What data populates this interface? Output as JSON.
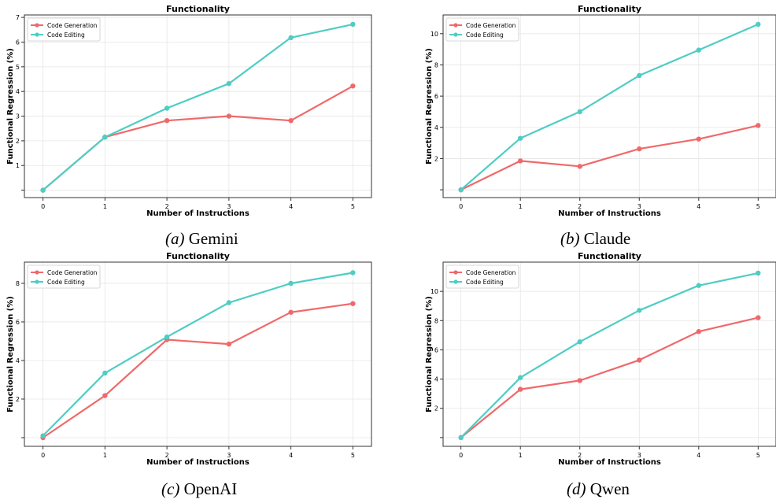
{
  "charts": [
    {
      "caption_tag": "(a)",
      "caption_name": "Gemini",
      "title": "Functionality",
      "xlabel": "Number of Instructions",
      "ylabel": "Functional Regression (%)",
      "x_ticks": [
        "0",
        "1",
        "2",
        "3",
        "4",
        "5"
      ],
      "y_ticks": [
        "",
        "1",
        "2",
        "3",
        "4",
        "5",
        "6",
        "7"
      ]
    },
    {
      "caption_tag": "(b)",
      "caption_name": "Claude",
      "title": "Functionality",
      "xlabel": "Number of Instructions",
      "ylabel": "Functional Regression (%)",
      "x_ticks": [
        "0",
        "1",
        "2",
        "3",
        "4",
        "5"
      ],
      "y_ticks": [
        "",
        "2",
        "4",
        "6",
        "8",
        "10"
      ]
    },
    {
      "caption_tag": "(c)",
      "caption_name": "OpenAI",
      "title": "Functionality",
      "xlabel": "Number of Instructions",
      "ylabel": "Functional Regression (%)",
      "x_ticks": [
        "0",
        "1",
        "2",
        "3",
        "4",
        "5"
      ],
      "y_ticks": [
        "",
        "2",
        "4",
        "6",
        "8"
      ]
    },
    {
      "caption_tag": "(d)",
      "caption_name": "Qwen",
      "title": "Functionality",
      "xlabel": "Number of Instructions",
      "ylabel": "Functional Regression (%)",
      "x_ticks": [
        "0",
        "1",
        "2",
        "3",
        "4",
        "5"
      ],
      "y_ticks": [
        "",
        "2",
        "4",
        "6",
        "8",
        "10"
      ]
    }
  ],
  "colors": {
    "code_generation": "#F0696A",
    "code_editing": "#4ECDC4",
    "grid": "#e6e6e6",
    "axis": "#333333"
  },
  "chart_data": [
    {
      "type": "line",
      "title": "Functionality",
      "xlabel": "Number of Instructions",
      "ylabel": "Functional Regression (%)",
      "x": [
        0,
        1,
        2,
        3,
        4,
        5
      ],
      "xlim": [
        -0.3,
        5.3
      ],
      "ylim": [
        -0.3,
        7.1
      ],
      "y_tick_values": [
        0,
        1,
        2,
        3,
        4,
        5,
        6,
        7
      ],
      "grid": true,
      "legend": "top-left",
      "series": [
        {
          "name": "Code Generation",
          "values": [
            0.0,
            2.15,
            2.82,
            3.0,
            2.82,
            4.22
          ]
        },
        {
          "name": "Code Editing",
          "values": [
            0.0,
            2.15,
            3.32,
            4.32,
            6.18,
            6.72
          ]
        }
      ]
    },
    {
      "type": "line",
      "title": "Functionality",
      "xlabel": "Number of Instructions",
      "ylabel": "Functional Regression (%)",
      "x": [
        0,
        1,
        2,
        3,
        4,
        5
      ],
      "xlim": [
        -0.3,
        5.3
      ],
      "ylim": [
        -0.5,
        11.2
      ],
      "y_tick_values": [
        0,
        2,
        4,
        6,
        8,
        10
      ],
      "grid": true,
      "legend": "top-left",
      "series": [
        {
          "name": "Code Generation",
          "values": [
            0.0,
            1.85,
            1.5,
            2.62,
            3.25,
            4.12
          ]
        },
        {
          "name": "Code Editing",
          "values": [
            0.0,
            3.3,
            5.0,
            7.32,
            8.95,
            10.6
          ]
        }
      ]
    },
    {
      "type": "line",
      "title": "Functionality",
      "xlabel": "Number of Instructions",
      "ylabel": "Functional Regression (%)",
      "x": [
        0,
        1,
        2,
        3,
        4,
        5
      ],
      "xlim": [
        -0.3,
        5.3
      ],
      "ylim": [
        -0.45,
        9.1
      ],
      "y_tick_values": [
        0,
        2,
        4,
        6,
        8
      ],
      "grid": true,
      "legend": "top-left",
      "series": [
        {
          "name": "Code Generation",
          "values": [
            0.0,
            2.18,
            5.08,
            4.85,
            6.5,
            6.95
          ]
        },
        {
          "name": "Code Editing",
          "values": [
            0.1,
            3.35,
            5.22,
            7.0,
            8.0,
            8.55
          ]
        }
      ]
    },
    {
      "type": "line",
      "title": "Functionality",
      "xlabel": "Number of Instructions",
      "ylabel": "Functional Regression (%)",
      "x": [
        0,
        1,
        2,
        3,
        4,
        5
      ],
      "xlim": [
        -0.3,
        5.3
      ],
      "ylim": [
        -0.6,
        12.0
      ],
      "y_tick_values": [
        0,
        2,
        4,
        6,
        8,
        10
      ],
      "grid": true,
      "legend": "top-left",
      "series": [
        {
          "name": "Code Generation",
          "values": [
            0.0,
            3.3,
            3.9,
            5.3,
            7.25,
            8.2
          ]
        },
        {
          "name": "Code Editing",
          "values": [
            0.0,
            4.1,
            6.55,
            8.7,
            10.4,
            11.25
          ]
        }
      ]
    }
  ]
}
